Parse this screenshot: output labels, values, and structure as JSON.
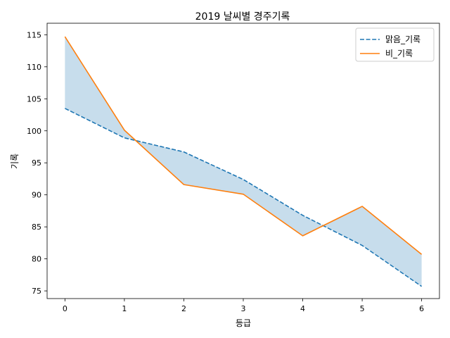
{
  "chart_data": {
    "type": "line",
    "title": "2019 날씨별 경주기록",
    "xlabel": "등급",
    "ylabel": "기록",
    "x": [
      0,
      1,
      2,
      3,
      4,
      5,
      6
    ],
    "xlim": [
      -0.3,
      6.3
    ],
    "ylim": [
      73.8,
      116.8
    ],
    "xticks": [
      0,
      1,
      2,
      3,
      4,
      5,
      6
    ],
    "yticks": [
      75,
      80,
      85,
      90,
      95,
      100,
      105,
      110,
      115
    ],
    "grid": false,
    "legend_position": "top-right",
    "series": [
      {
        "name": "맑음_기록",
        "values": [
          103.5,
          98.9,
          96.7,
          92.4,
          86.8,
          82.1,
          75.7
        ],
        "color": "#1f77b4",
        "line_style": "dashed"
      },
      {
        "name": "비_기록",
        "values": [
          114.7,
          100.1,
          91.6,
          90.1,
          83.6,
          88.2,
          80.7
        ],
        "color": "#ff7f0e",
        "line_style": "solid"
      }
    ],
    "fill_between": {
      "series": [
        0,
        1
      ],
      "color": "#1f77b4",
      "opacity": 0.25
    }
  }
}
